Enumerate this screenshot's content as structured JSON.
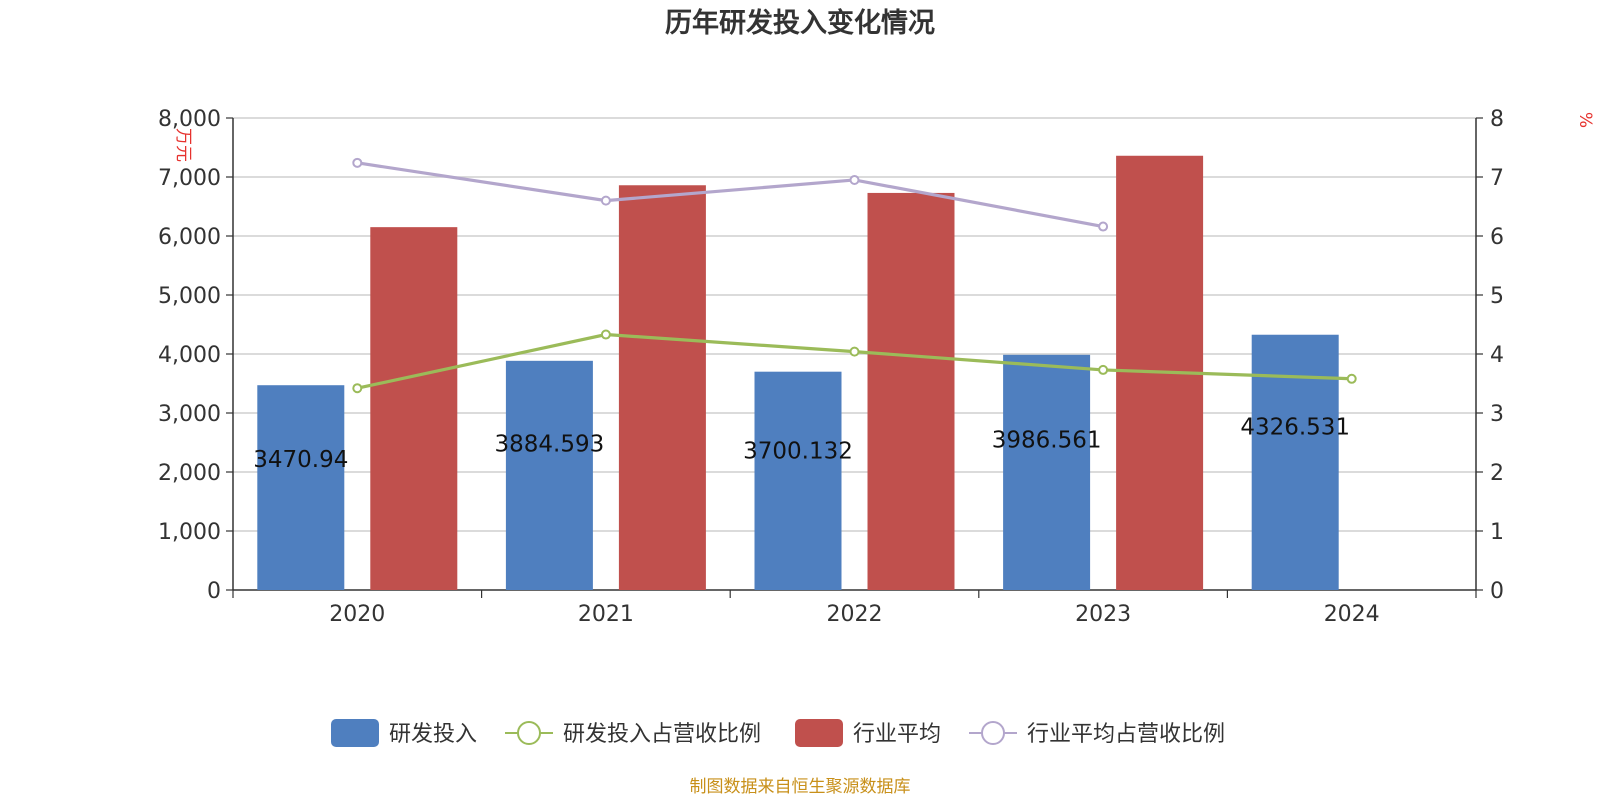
{
  "chart_data": {
    "type": "bar",
    "title": "历年研发投入变化情况",
    "categories": [
      "2020",
      "2021",
      "2022",
      "2023",
      "2024"
    ],
    "y_left": {
      "unit": "万元",
      "ylim": [
        0,
        8000
      ],
      "ticks": [
        0,
        1000,
        2000,
        3000,
        4000,
        5000,
        6000,
        7000,
        8000
      ],
      "tick_labels": [
        "0",
        "1,000",
        "2,000",
        "3,000",
        "4,000",
        "5,000",
        "6,000",
        "7,000",
        "8,000"
      ]
    },
    "y_right": {
      "unit": "%",
      "ylim": [
        0,
        8
      ],
      "ticks": [
        0,
        1,
        2,
        3,
        4,
        5,
        6,
        7,
        8
      ],
      "tick_labels": [
        "0",
        "1",
        "2",
        "3",
        "4",
        "5",
        "6",
        "7",
        "8"
      ]
    },
    "grid": true,
    "legend_position": "bottom",
    "series": [
      {
        "name": "研发投入",
        "type": "bar",
        "axis": "left",
        "color": "#4f7fbf",
        "values": [
          3470.94,
          3884.593,
          3700.132,
          3986.561,
          4326.531
        ],
        "labels": [
          "3470.94",
          "3884.593",
          "3700.132",
          "3986.561",
          "4326.531"
        ]
      },
      {
        "name": "研发投入占营收比例",
        "type": "line",
        "axis": "right",
        "color": "#9bbb59",
        "values": [
          3.42,
          4.33,
          4.04,
          3.73,
          3.58
        ]
      },
      {
        "name": "行业平均",
        "type": "bar",
        "axis": "left",
        "color": "#c0504d",
        "values": [
          6150,
          6860,
          6730,
          7360,
          null
        ]
      },
      {
        "name": "行业平均占营收比例",
        "type": "line",
        "axis": "right",
        "color": "#b3a6cc",
        "values": [
          7.24,
          6.6,
          6.95,
          6.16,
          null
        ]
      }
    ]
  },
  "source_note": "制图数据来自恒生聚源数据库"
}
